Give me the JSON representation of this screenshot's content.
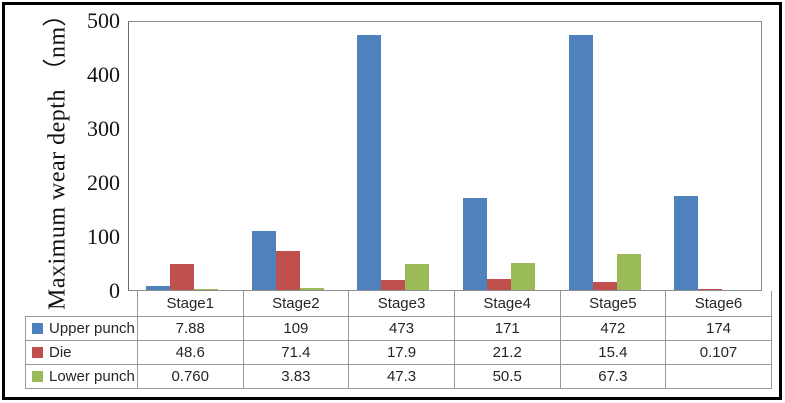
{
  "chart_data": {
    "type": "bar",
    "title": "",
    "ylabel": "Maximum wear depth （nm）",
    "xlabel": "",
    "categories": [
      "Stage1",
      "Stage2",
      "Stage3",
      "Stage4",
      "Stage5",
      "Stage6"
    ],
    "series": [
      {
        "name": "Upper punch",
        "color": "#4F81BD",
        "values": [
          7.88,
          109,
          473,
          171,
          472,
          174
        ],
        "labels": [
          "7.88",
          "109",
          "473",
          "171",
          "472",
          "174"
        ]
      },
      {
        "name": "Die",
        "color": "#C0504D",
        "values": [
          48.6,
          71.4,
          17.9,
          21.2,
          15.4,
          0.107
        ],
        "labels": [
          "48.6",
          "71.4",
          "17.9",
          "21.2",
          "15.4",
          "0.107"
        ]
      },
      {
        "name": "Lower punch",
        "color": "#9BBB59",
        "values": [
          0.76,
          3.83,
          47.3,
          50.5,
          67.3,
          null
        ],
        "labels": [
          "0.760",
          "3.83",
          "47.3",
          "50.5",
          "67.3",
          ""
        ]
      }
    ],
    "ylim": [
      0,
      500
    ],
    "yticks": [
      0,
      100,
      200,
      300,
      400,
      500
    ],
    "grid": false,
    "legend_position": "table-left"
  }
}
